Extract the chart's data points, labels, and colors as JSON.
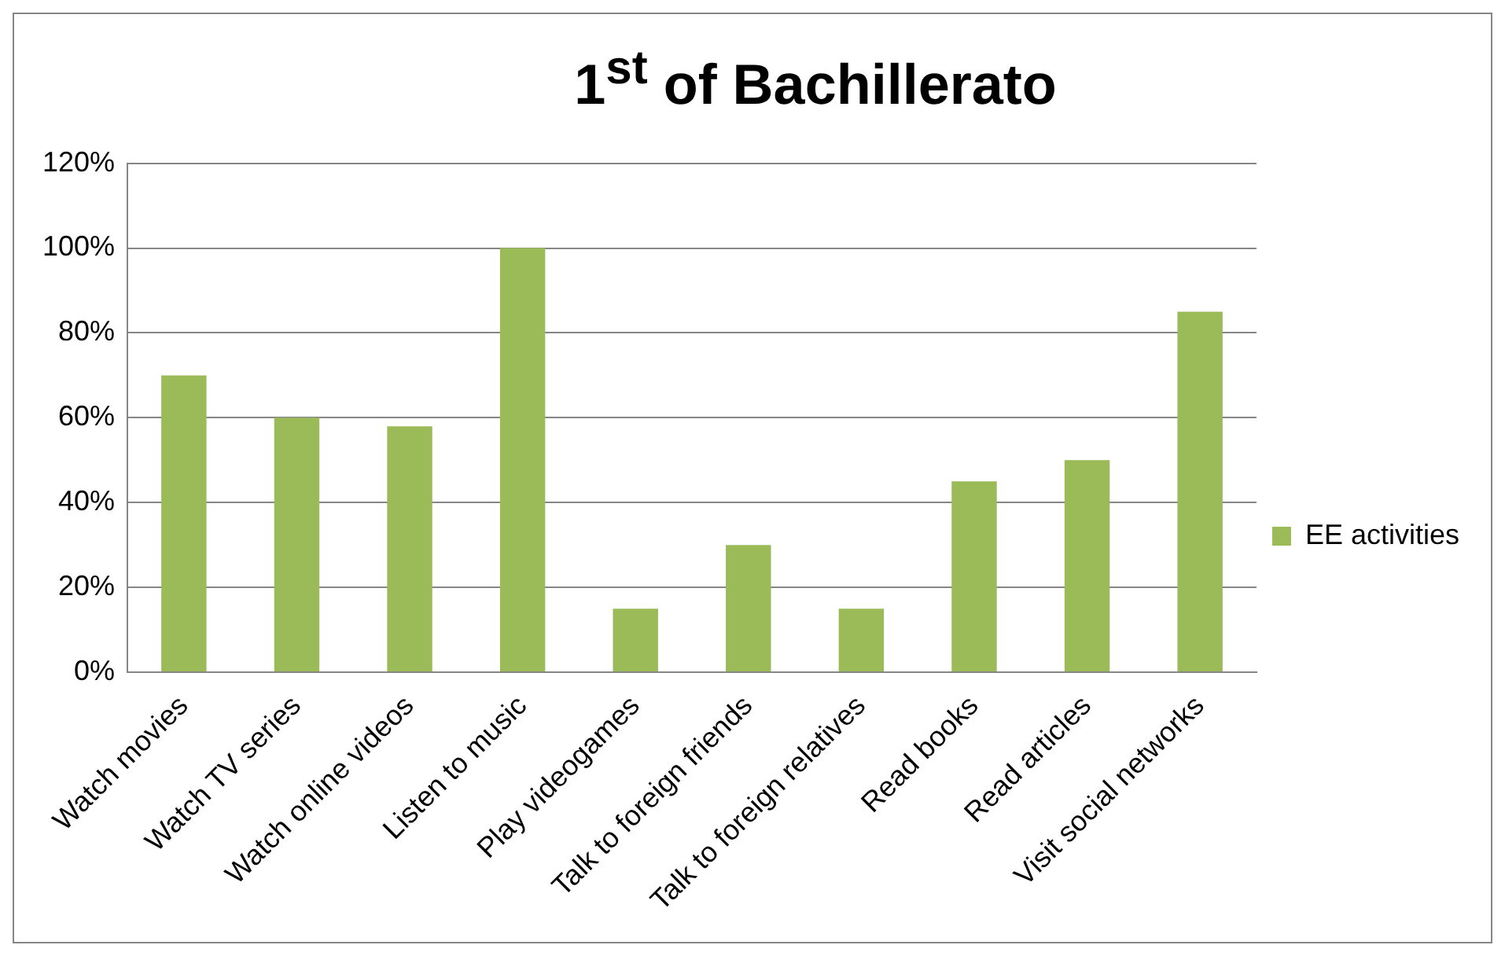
{
  "chart_data": {
    "type": "bar",
    "title": "1$^{st}$ of Bachillerato",
    "categories": [
      "Watch movies",
      "Watch TV series",
      "Watch online videos",
      "Listen to music",
      "Play videogames",
      "Talk to foreign friends",
      "Talk to foreign relatives",
      "Read books",
      "Read articles",
      "Visit social networks"
    ],
    "series": [
      {
        "name": "EE activities",
        "color": "#9bbb59",
        "values": [
          70,
          60,
          58,
          100,
          15,
          30,
          15,
          45,
          50,
          85
        ]
      }
    ],
    "ylim": [
      0,
      120
    ],
    "yticks": [
      {
        "value": 0,
        "label": "0%"
      },
      {
        "value": 20,
        "label": "20%"
      },
      {
        "value": 40,
        "label": "40%"
      },
      {
        "value": 60,
        "label": "60%"
      },
      {
        "value": 80,
        "label": "80%"
      },
      {
        "value": 100,
        "label": "100%"
      },
      {
        "value": 120,
        "label": "120%"
      }
    ],
    "grid": "y",
    "legend": "right"
  }
}
